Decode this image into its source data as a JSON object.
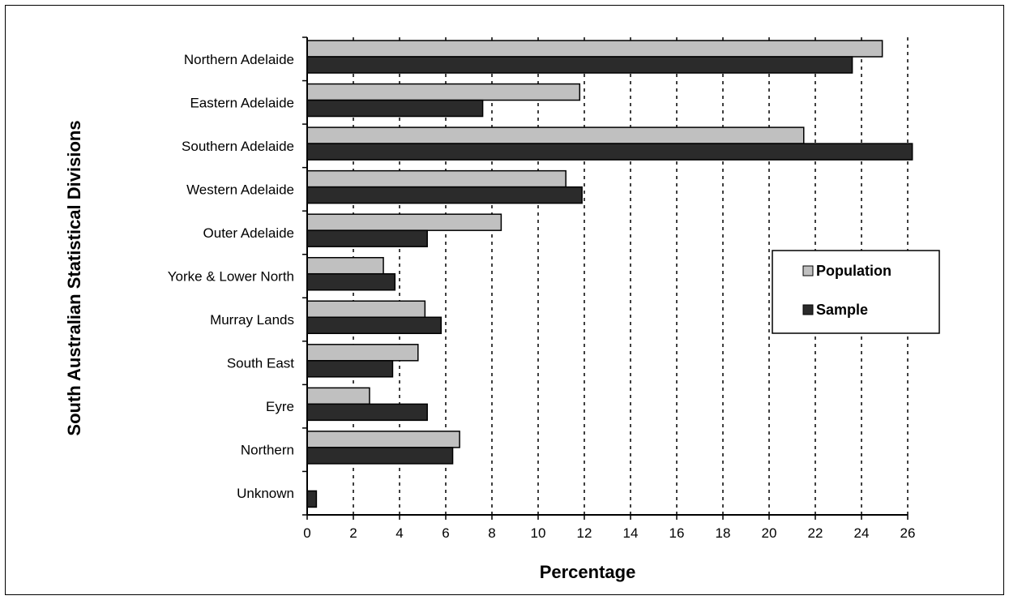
{
  "chart_data": {
    "type": "bar",
    "orientation": "horizontal",
    "title": "",
    "xlabel": "Percentage",
    "ylabel": "South Australian Statistical Divisions",
    "categories": [
      "Northern Adelaide",
      "Eastern Adelaide",
      "Southern Adelaide",
      "Western Adelaide",
      "Outer Adelaide",
      "Yorke & Lower North",
      "Murray Lands",
      "South East",
      "Eyre",
      "Northern",
      "Unknown"
    ],
    "series": [
      {
        "name": "Population",
        "color": "#c0c0c0",
        "values": [
          24.9,
          11.8,
          21.5,
          11.2,
          8.4,
          3.3,
          5.1,
          4.8,
          2.7,
          6.6,
          0
        ]
      },
      {
        "name": "Sample",
        "color": "#2b2b2b",
        "values": [
          23.6,
          7.6,
          26.2,
          11.9,
          5.2,
          3.8,
          5.8,
          3.7,
          5.2,
          6.3,
          0.4
        ]
      }
    ],
    "xlim": [
      0,
      26
    ],
    "xticks": [
      "0",
      "2",
      "4",
      "6",
      "8",
      "10",
      "12",
      "14",
      "16",
      "18",
      "20",
      "22",
      "24",
      "26"
    ],
    "grid": "vertical dotted",
    "legend_position": "right"
  }
}
